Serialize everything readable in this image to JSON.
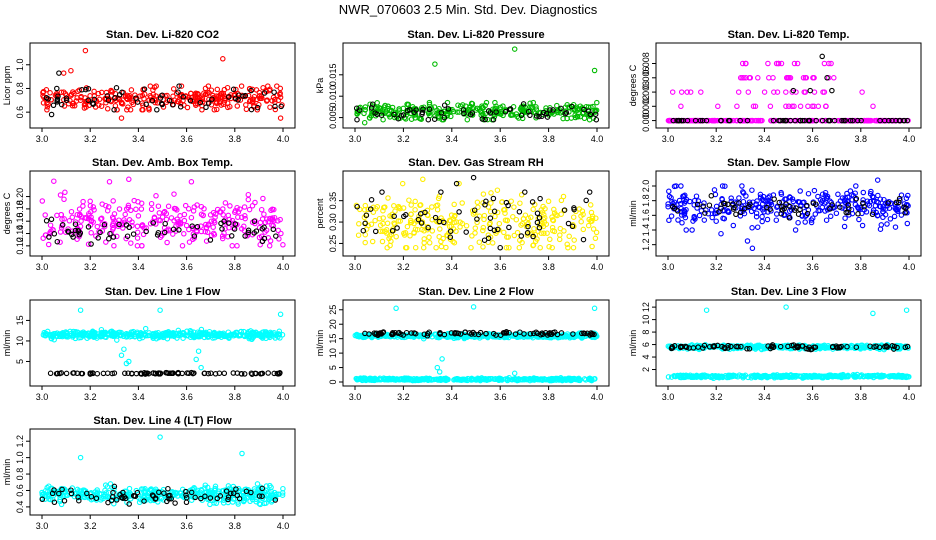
{
  "figure": {
    "title": "NWR_070603  2.5 Min. Std. Dev. Diagnostics"
  },
  "chart_data": [
    {
      "type": "scatter",
      "title": "Stan. Dev. Li-820 CO2",
      "ylabel": "Licor ppm",
      "xlim": [
        3.0,
        4.0
      ],
      "ylim": [
        0.5,
        1.15
      ],
      "xticks": [
        "3.0",
        "3.2",
        "3.4",
        "3.6",
        "3.8",
        "4.0"
      ],
      "yticks": [
        "0.6",
        "0.8",
        "1.0"
      ],
      "series": [
        {
          "name": "main",
          "color": "#ff0000",
          "n": 300,
          "band": [
            0.62,
            0.82
          ],
          "mean": 0.72,
          "sd": 0.05,
          "outliers": [
            [
              3.18,
              1.12
            ],
            [
              3.12,
              0.95
            ],
            [
              3.75,
              1.05
            ],
            [
              3.99,
              0.55
            ],
            [
              3.33,
              0.55
            ],
            [
              3.09,
              0.93
            ]
          ]
        },
        {
          "name": "black",
          "color": "#000000",
          "n": 60,
          "band": [
            0.62,
            0.82
          ],
          "mean": 0.71,
          "sd": 0.05,
          "outliers": [
            [
              3.07,
              0.93
            ],
            [
              3.04,
              0.58
            ]
          ]
        }
      ]
    },
    {
      "type": "scatter",
      "title": "Stan. Dev. Li-820 Pressure",
      "ylabel": "kPa",
      "xlim": [
        3.0,
        4.0
      ],
      "ylim": [
        0.0035,
        0.0215
      ],
      "xticks": [
        "3.0",
        "3.2",
        "3.4",
        "3.6",
        "3.8",
        "4.0"
      ],
      "yticks": [
        "0.005",
        "0.010",
        "0.015"
      ],
      "series": [
        {
          "name": "main",
          "color": "#00bb00",
          "n": 300,
          "band": [
            0.0045,
            0.0085
          ],
          "mean": 0.0065,
          "sd": 0.001,
          "outliers": [
            [
              3.33,
              0.0175
            ],
            [
              3.66,
              0.021
            ],
            [
              3.99,
              0.016
            ],
            [
              3.04,
              0.0038
            ]
          ]
        },
        {
          "name": "black",
          "color": "#000000",
          "n": 60,
          "band": [
            0.0045,
            0.0085
          ],
          "mean": 0.0062,
          "sd": 0.001,
          "outliers": []
        }
      ]
    },
    {
      "type": "scatter",
      "title": "Stan. Dev. Li-820 Temp.",
      "ylabel": "degrees C",
      "xlim": [
        3.0,
        4.0
      ],
      "ylim": [
        -0.0004,
        0.0086
      ],
      "xticks": [
        "3.0",
        "3.2",
        "3.4",
        "3.6",
        "3.8",
        "4.0"
      ],
      "yticks": [
        "0.000",
        "0.002",
        "0.003",
        "0.006",
        "0.008"
      ],
      "levels": [
        0.0,
        0.00167,
        0.00333,
        0.005,
        0.00667,
        0.00833
      ],
      "series": [
        {
          "name": "main",
          "color": "#ff00ff",
          "n": 300,
          "band": [
            0.0,
            0.0
          ],
          "mean": 0.0,
          "sd": 0.0,
          "outliers": []
        },
        {
          "name": "black",
          "color": "#000000",
          "n": 60,
          "band": [
            0.0,
            0.0
          ],
          "mean": 0.0,
          "sd": 0.0,
          "outliers": [
            [
              3.64,
              0.0075
            ],
            [
              3.66,
              0.005
            ],
            [
              3.68,
              0.0035
            ],
            [
              3.59,
              0.0035
            ],
            [
              3.52,
              0.0035
            ]
          ]
        }
      ]
    },
    {
      "type": "scatter",
      "title": "Stan. Dev. Amb. Box Temp.",
      "ylabel": "degrees C",
      "xlim": [
        3.0,
        4.0
      ],
      "ylim": [
        0.11,
        0.235
      ],
      "xticks": [
        "3.0",
        "3.2",
        "3.4",
        "3.6",
        "3.8",
        "4.0"
      ],
      "yticks": [
        "0.12",
        "0.14",
        "0.16",
        "0.18",
        "0.20"
      ],
      "series": [
        {
          "name": "main",
          "color": "#ff00ff",
          "n": 300,
          "band": [
            0.12,
            0.225
          ],
          "mean": 0.158,
          "sd": 0.02,
          "outliers": [
            [
              3.36,
              0.228
            ],
            [
              3.28,
              0.224
            ],
            [
              3.62,
              0.224
            ]
          ]
        },
        {
          "name": "black",
          "color": "#000000",
          "n": 60,
          "band": [
            0.12,
            0.175
          ],
          "mean": 0.145,
          "sd": 0.011,
          "outliers": []
        }
      ]
    },
    {
      "type": "scatter",
      "title": "Stan. Dev. Gas Stream RH",
      "ylabel": "percent",
      "xlim": [
        3.0,
        4.0
      ],
      "ylim": [
        0.23,
        0.41
      ],
      "xticks": [
        "3.0",
        "3.2",
        "3.4",
        "3.6",
        "3.8",
        "4.0"
      ],
      "yticks": [
        "0.25",
        "0.30",
        "0.35"
      ],
      "series": [
        {
          "name": "main",
          "color": "#ffee00",
          "n": 300,
          "band": [
            0.24,
            0.39
          ],
          "mean": 0.3,
          "sd": 0.03,
          "outliers": [
            [
              3.28,
              0.4
            ],
            [
              3.43,
              0.39
            ]
          ]
        },
        {
          "name": "black",
          "color": "#000000",
          "n": 60,
          "band": [
            0.25,
            0.37
          ],
          "mean": 0.31,
          "sd": 0.03,
          "outliers": [
            [
              3.49,
              0.404
            ],
            [
              3.6,
              0.24
            ],
            [
              3.97,
              0.37
            ],
            [
              3.42,
              0.39
            ]
          ]
        }
      ]
    },
    {
      "type": "scatter",
      "title": "Stan. Dev. Sample Flow",
      "ylabel": "ml/min",
      "xlim": [
        3.0,
        4.0
      ],
      "ylim": [
        1.1,
        2.15
      ],
      "xticks": [
        "3.0",
        "3.2",
        "3.4",
        "3.6",
        "3.8",
        "4.0"
      ],
      "yticks": [
        "1.2",
        "1.4",
        "1.6",
        "1.8",
        "2.0"
      ],
      "series": [
        {
          "name": "main",
          "color": "#0000ff",
          "n": 320,
          "band": [
            1.4,
            2.0
          ],
          "mean": 1.72,
          "sd": 0.12,
          "outliers": [
            [
              3.35,
              1.15
            ],
            [
              3.87,
              2.08
            ],
            [
              3.33,
              1.25
            ],
            [
              3.1,
              1.4
            ],
            [
              3.22,
              1.35
            ]
          ]
        },
        {
          "name": "black",
          "color": "#000000",
          "n": 60,
          "band": [
            1.55,
            1.9
          ],
          "mean": 1.72,
          "sd": 0.07,
          "outliers": []
        }
      ]
    },
    {
      "type": "scatter",
      "title": "Stan. Dev. Line 1 Flow",
      "ylabel": "ml/min",
      "xlim": [
        3.0,
        4.0
      ],
      "ylim": [
        0.0,
        19.0
      ],
      "xticks": [
        "3.0",
        "3.2",
        "3.4",
        "3.6",
        "3.8",
        "4.0"
      ],
      "yticks": [
        "5",
        "10",
        "15"
      ],
      "series": [
        {
          "name": "main",
          "color": "#00ffff",
          "n": 420,
          "band": [
            10.0,
            13.0
          ],
          "mean": 11.5,
          "sd": 0.45,
          "outliers": [
            [
              3.16,
              17.5
            ],
            [
              3.33,
              6.5
            ],
            [
              3.35,
              4.5
            ],
            [
              3.34,
              8.0
            ],
            [
              3.36,
              5.0
            ],
            [
              3.65,
              7.5
            ],
            [
              3.66,
              3.5
            ],
            [
              3.64,
              5.5
            ],
            [
              3.49,
              17.5
            ],
            [
              3.99,
              16.5
            ]
          ]
        },
        {
          "name": "black",
          "color": "#000000",
          "n": 90,
          "band": [
            1.9,
            2.3
          ],
          "mean": 2.1,
          "sd": 0.08,
          "outliers": []
        }
      ]
    },
    {
      "type": "scatter",
      "title": "Stan. Dev. Line 2 Flow",
      "ylabel": "ml/min",
      "xlim": [
        3.0,
        4.0
      ],
      "ylim": [
        0.0,
        27.0
      ],
      "xticks": [
        "3.0",
        "3.2",
        "3.4",
        "3.6",
        "3.8",
        "4.0"
      ],
      "yticks": [
        "0",
        "5",
        "10",
        "15",
        "20",
        "25"
      ],
      "series": [
        {
          "name": "main",
          "color": "#00ffff",
          "n": 420,
          "band": [
            15.0,
            17.0
          ],
          "mean": 16.0,
          "sd": 0.35,
          "outliers": [
            [
              3.17,
              25.5
            ],
            [
              3.99,
              25.5
            ],
            [
              3.34,
              5.0
            ],
            [
              3.35,
              3.5
            ],
            [
              3.36,
              8.0
            ],
            [
              3.66,
              3.0
            ],
            [
              3.49,
              26.0
            ]
          ]
        },
        {
          "name": "cyan-low",
          "color": "#00ffff",
          "n": 380,
          "band": [
            0.5,
            1.5
          ],
          "mean": 0.9,
          "sd": 0.2,
          "outliers": []
        },
        {
          "name": "black",
          "color": "#000000",
          "n": 90,
          "band": [
            16.0,
            18.0
          ],
          "mean": 16.8,
          "sd": 0.3,
          "outliers": []
        }
      ]
    },
    {
      "type": "scatter",
      "title": "Stan. Dev. Line 3 Flow",
      "ylabel": "ml/min",
      "xlim": [
        3.0,
        4.0
      ],
      "ylim": [
        0.0,
        12.5
      ],
      "xticks": [
        "3.0",
        "3.2",
        "3.4",
        "3.6",
        "3.8",
        "4.0"
      ],
      "yticks": [
        "2",
        "4",
        "6",
        "8",
        "10",
        "12"
      ],
      "series": [
        {
          "name": "main",
          "color": "#00ffff",
          "n": 400,
          "band": [
            5.2,
            6.0
          ],
          "mean": 5.6,
          "sd": 0.15,
          "outliers": [
            [
              3.16,
              11.5
            ],
            [
              3.49,
              12.0
            ],
            [
              3.99,
              11.5
            ],
            [
              3.85,
              11.0
            ]
          ]
        },
        {
          "name": "cyan-low",
          "color": "#00ffff",
          "n": 380,
          "band": [
            0.6,
            1.2
          ],
          "mean": 0.9,
          "sd": 0.1,
          "outliers": []
        },
        {
          "name": "black",
          "color": "#000000",
          "n": 80,
          "band": [
            5.2,
            6.0
          ],
          "mean": 5.6,
          "sd": 0.15,
          "outliers": []
        }
      ]
    },
    {
      "type": "scatter",
      "title": "Stan. Dev. Line 4 (LT) Flow",
      "ylabel": "ml/min",
      "xlim": [
        3.0,
        4.0
      ],
      "ylim": [
        0.35,
        1.3
      ],
      "xticks": [
        "3.0",
        "3.2",
        "3.4",
        "3.6",
        "3.8",
        "4.0"
      ],
      "yticks": [
        "0.4",
        "0.6",
        "0.8",
        "1.0",
        "1.2"
      ],
      "series": [
        {
          "name": "main",
          "color": "#00ffff",
          "n": 420,
          "band": [
            0.43,
            0.68
          ],
          "mean": 0.55,
          "sd": 0.05,
          "outliers": [
            [
              3.49,
              1.25
            ],
            [
              3.16,
              1.0
            ],
            [
              3.83,
              1.05
            ],
            [
              3.08,
              0.62
            ]
          ]
        },
        {
          "name": "black",
          "color": "#000000",
          "n": 70,
          "band": [
            0.42,
            0.65
          ],
          "mean": 0.52,
          "sd": 0.05,
          "outliers": []
        }
      ]
    }
  ]
}
